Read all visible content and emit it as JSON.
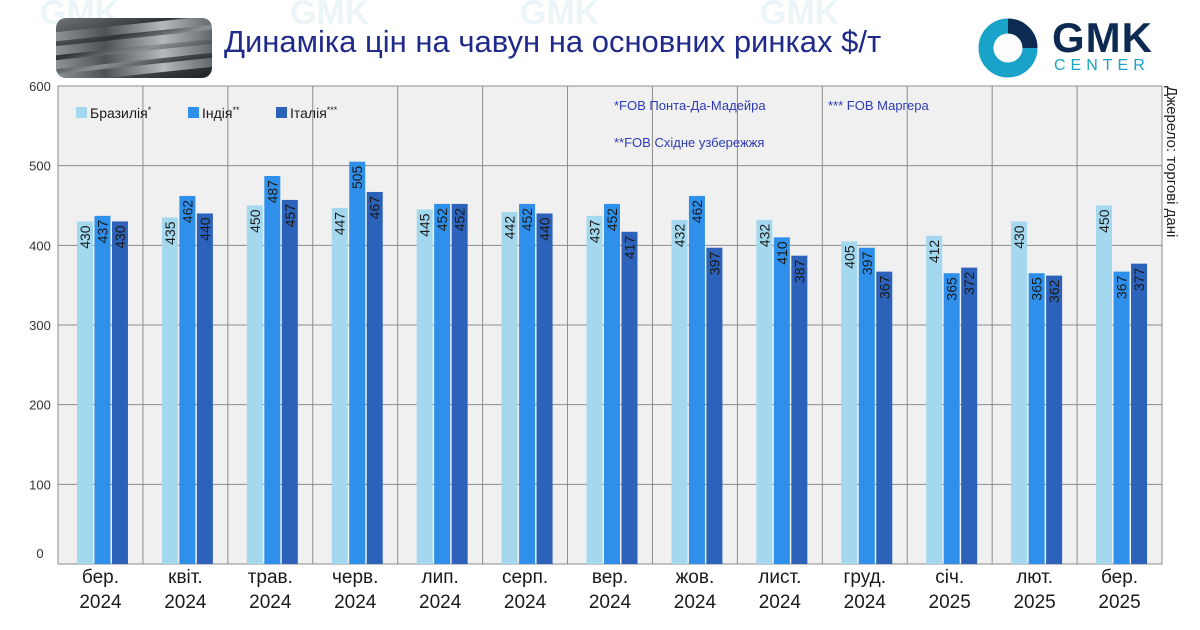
{
  "header": {
    "title": "Динаміка цін на чавун на основних ринках $/т",
    "logo_main": "GMK",
    "logo_sub": "CENTER",
    "watermark": "GMK"
  },
  "source_note": "Джерело: торгові дані",
  "footnotes": [
    "*FOB Понта-Да-Мадейра",
    "*** FOB Маргера",
    "**FOB Східне узбережжя"
  ],
  "colors": {
    "brazil": "#a3d8ef",
    "india": "#2e90ea",
    "italy": "#2c62b9",
    "plot_bg": "#f0f0f0",
    "grid": "#8c8c8c",
    "title": "#1f2a8c",
    "logo_ring": "#1aa3c9"
  },
  "chart_data": {
    "type": "bar",
    "title": "Динаміка цін на чавун на основних ринках $/т",
    "xlabel": "",
    "ylabel": "",
    "ylim": [
      0,
      600
    ],
    "yticks": [
      0,
      100,
      200,
      300,
      400,
      500,
      600
    ],
    "grid": true,
    "legend_position": "top-left",
    "categories": [
      [
        "бер.",
        "2024"
      ],
      [
        "квіт.",
        "2024"
      ],
      [
        "трав.",
        "2024"
      ],
      [
        "черв.",
        "2024"
      ],
      [
        "лип.",
        "2024"
      ],
      [
        "серп.",
        "2024"
      ],
      [
        "вер.",
        "2024"
      ],
      [
        "жов.",
        "2024"
      ],
      [
        "лист.",
        "2024"
      ],
      [
        "груд.",
        "2024"
      ],
      [
        "січ.",
        "2025"
      ],
      [
        "лют.",
        "2025"
      ],
      [
        "бер.",
        "2025"
      ]
    ],
    "series": [
      {
        "name": "Бразилія",
        "sup": "*",
        "color": "#a3d8ef",
        "values": [
          430,
          435,
          450,
          447,
          445,
          442,
          437,
          432,
          432,
          405,
          412,
          430,
          450
        ]
      },
      {
        "name": "Індія",
        "sup": "**",
        "color": "#2e90ea",
        "values": [
          437,
          462,
          487,
          505,
          452,
          452,
          452,
          462,
          410,
          397,
          365,
          365,
          367
        ]
      },
      {
        "name": "Італія",
        "sup": "***",
        "color": "#2c62b9",
        "values": [
          430,
          440,
          457,
          467,
          452,
          440,
          417,
          397,
          387,
          367,
          372,
          362,
          377
        ]
      }
    ]
  }
}
